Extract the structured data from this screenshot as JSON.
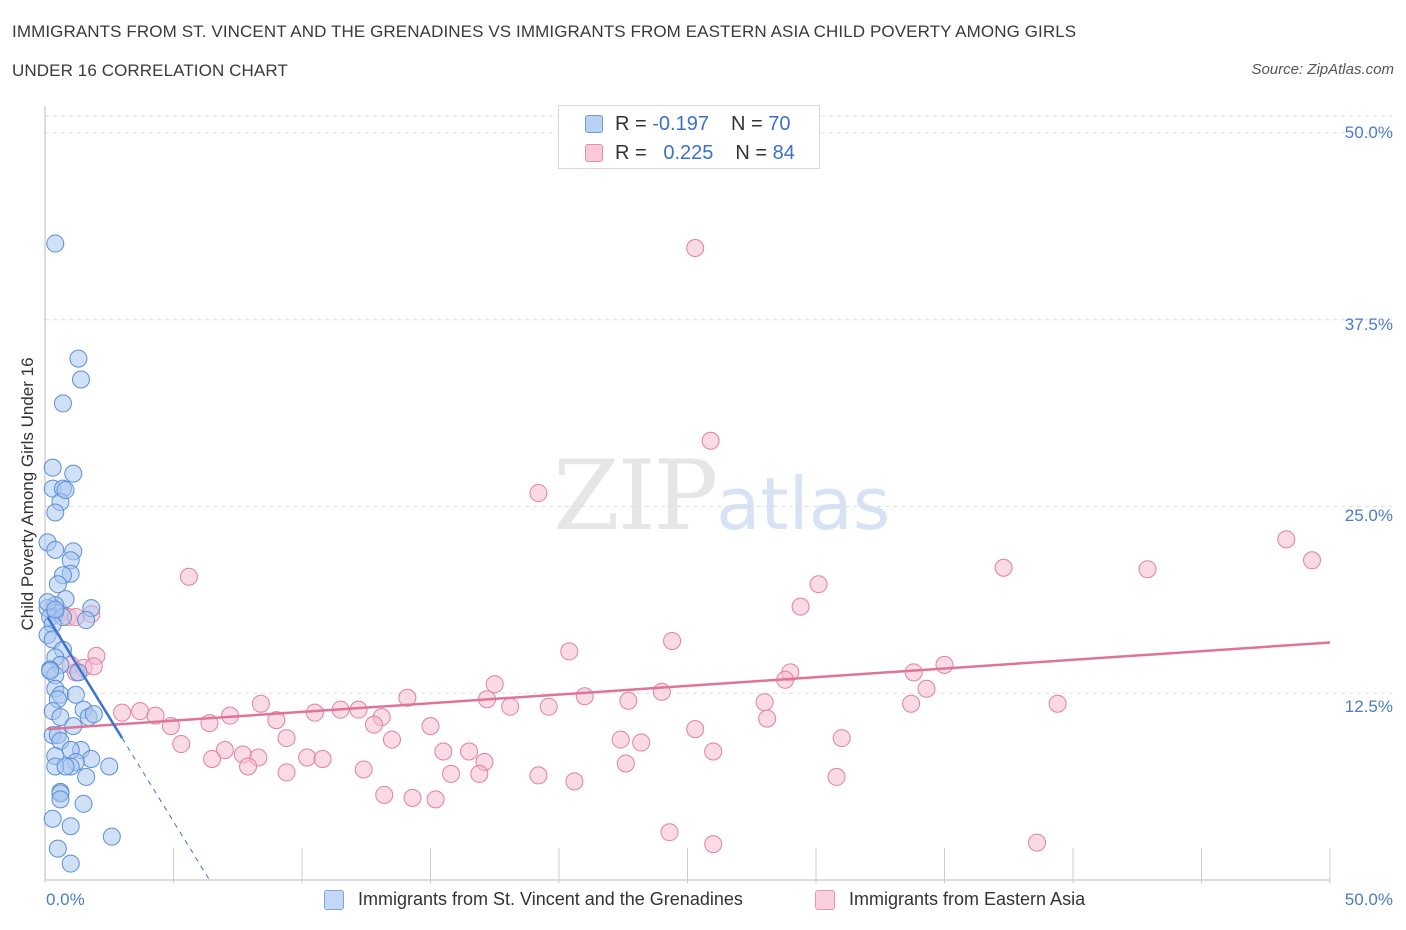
{
  "title_line1": "IMMIGRANTS FROM ST. VINCENT AND THE GRENADINES VS IMMIGRANTS FROM EASTERN ASIA CHILD POVERTY AMONG GIRLS",
  "title_line2": "UNDER 16 CORRELATION CHART",
  "source": "Source: ZipAtlas.com",
  "watermark": {
    "zip": "ZIP",
    "atlas": "atlas"
  },
  "stats": [
    {
      "r_label": "R =",
      "r_value": "-0.197",
      "n_label": "N =",
      "n_value": "70"
    },
    {
      "r_label": "R =",
      "r_value": "0.225",
      "n_label": "N =",
      "n_value": "84"
    }
  ],
  "colors": {
    "series1_fill": "#a9c7f0",
    "series1_stroke": "#5b8fd6",
    "series1_line": "#3d74d1",
    "series2_fill": "#f6bcd0",
    "series2_stroke": "#e2809f",
    "series2_line": "#e0739a",
    "tick_text": "#4a7cc9",
    "grid": "#dddddd"
  },
  "chart_data": {
    "type": "scatter",
    "title": "IMMIGRANTS FROM ST. VINCENT AND THE GRENADINES VS IMMIGRANTS FROM EASTERN ASIA CHILD POVERTY AMONG GIRLS UNDER 16 CORRELATION CHART",
    "xlabel": "",
    "ylabel": "Child Poverty Among Girls Under 16",
    "xlim": [
      0,
      50
    ],
    "ylim": [
      0,
      50
    ],
    "x_tick_labels": [
      {
        "value": 0,
        "label": "0.0%"
      },
      {
        "value": 50,
        "label": "50.0%"
      }
    ],
    "y_tick_labels": [
      {
        "value": 12.5,
        "label": "12.5%"
      },
      {
        "value": 25,
        "label": "25.0%"
      },
      {
        "value": 37.5,
        "label": "37.5%"
      },
      {
        "value": 50,
        "label": "50.0%"
      }
    ],
    "grid": true,
    "legend_position": "bottom",
    "series": [
      {
        "name": "Immigrants from St. Vincent and the Grenadines",
        "R": -0.197,
        "N": 70,
        "trend_solid": [
          [
            0.1,
            17.6
          ],
          [
            3.0,
            9.5
          ]
        ],
        "trend_dashed": [
          [
            3.0,
            9.5
          ],
          [
            6.4,
            0.0
          ]
        ],
        "points": [
          [
            0.4,
            42.6
          ],
          [
            1.3,
            34.9
          ],
          [
            1.4,
            33.5
          ],
          [
            0.7,
            31.9
          ],
          [
            0.3,
            27.6
          ],
          [
            1.1,
            27.2
          ],
          [
            0.3,
            26.2
          ],
          [
            0.7,
            26.2
          ],
          [
            0.6,
            25.3
          ],
          [
            0.4,
            24.6
          ],
          [
            0.1,
            22.6
          ],
          [
            0.4,
            22.1
          ],
          [
            1.1,
            22.0
          ],
          [
            1.0,
            21.4
          ],
          [
            1.0,
            20.5
          ],
          [
            0.7,
            20.4
          ],
          [
            0.5,
            19.8
          ],
          [
            0.8,
            18.8
          ],
          [
            0.4,
            18.4
          ],
          [
            0.1,
            18.2
          ],
          [
            1.8,
            18.2
          ],
          [
            0.4,
            17.9
          ],
          [
            0.2,
            17.6
          ],
          [
            0.7,
            17.6
          ],
          [
            1.6,
            17.4
          ],
          [
            0.3,
            17.1
          ],
          [
            0.1,
            16.4
          ],
          [
            0.3,
            16.1
          ],
          [
            0.7,
            15.4
          ],
          [
            0.4,
            14.9
          ],
          [
            0.6,
            14.4
          ],
          [
            0.2,
            14.1
          ],
          [
            1.3,
            13.9
          ],
          [
            0.4,
            13.7
          ],
          [
            0.4,
            12.8
          ],
          [
            0.6,
            12.4
          ],
          [
            1.2,
            12.4
          ],
          [
            0.5,
            12.1
          ],
          [
            1.5,
            11.4
          ],
          [
            0.3,
            11.3
          ],
          [
            0.6,
            10.9
          ],
          [
            1.7,
            10.9
          ],
          [
            1.1,
            10.3
          ],
          [
            0.3,
            9.7
          ],
          [
            0.5,
            9.7
          ],
          [
            0.6,
            9.3
          ],
          [
            1.4,
            8.7
          ],
          [
            1.0,
            8.7
          ],
          [
            0.4,
            8.3
          ],
          [
            1.8,
            8.1
          ],
          [
            1.2,
            7.9
          ],
          [
            1.0,
            7.6
          ],
          [
            0.4,
            7.6
          ],
          [
            0.8,
            7.6
          ],
          [
            2.5,
            7.6
          ],
          [
            1.6,
            6.9
          ],
          [
            0.6,
            5.9
          ],
          [
            0.6,
            5.8
          ],
          [
            0.6,
            5.4
          ],
          [
            1.5,
            5.1
          ],
          [
            0.3,
            4.1
          ],
          [
            1.0,
            3.6
          ],
          [
            2.6,
            2.9
          ],
          [
            0.5,
            2.1
          ],
          [
            1.0,
            1.1
          ],
          [
            0.1,
            18.6
          ],
          [
            0.2,
            14.0
          ],
          [
            1.9,
            11.1
          ],
          [
            0.4,
            18.1
          ],
          [
            0.8,
            26.1
          ]
        ]
      },
      {
        "name": "Immigrants from Eastern Asia",
        "R": 0.225,
        "N": 84,
        "trend": [
          [
            0.1,
            10.1
          ],
          [
            50.0,
            15.9
          ]
        ],
        "points": [
          [
            25.3,
            42.3
          ],
          [
            25.9,
            29.4
          ],
          [
            19.2,
            25.9
          ],
          [
            5.6,
            20.3
          ],
          [
            48.3,
            22.8
          ],
          [
            49.3,
            21.4
          ],
          [
            37.3,
            20.9
          ],
          [
            42.9,
            20.8
          ],
          [
            30.1,
            19.8
          ],
          [
            29.4,
            18.3
          ],
          [
            0.6,
            17.9
          ],
          [
            0.9,
            17.6
          ],
          [
            1.2,
            17.6
          ],
          [
            24.4,
            16.0
          ],
          [
            20.4,
            15.3
          ],
          [
            2.0,
            15.0
          ],
          [
            1.0,
            14.4
          ],
          [
            1.5,
            14.2
          ],
          [
            1.9,
            14.3
          ],
          [
            1.2,
            13.9
          ],
          [
            35.0,
            14.4
          ],
          [
            29.0,
            13.9
          ],
          [
            33.8,
            13.9
          ],
          [
            28.8,
            13.4
          ],
          [
            17.5,
            13.1
          ],
          [
            34.3,
            12.8
          ],
          [
            24.0,
            12.6
          ],
          [
            21.0,
            12.3
          ],
          [
            22.7,
            12.0
          ],
          [
            14.1,
            12.2
          ],
          [
            17.2,
            12.1
          ],
          [
            28.0,
            11.9
          ],
          [
            33.7,
            11.8
          ],
          [
            39.4,
            11.8
          ],
          [
            8.4,
            11.8
          ],
          [
            18.1,
            11.6
          ],
          [
            19.6,
            11.6
          ],
          [
            11.5,
            11.4
          ],
          [
            12.2,
            11.4
          ],
          [
            10.5,
            11.2
          ],
          [
            3.0,
            11.2
          ],
          [
            3.7,
            11.3
          ],
          [
            4.3,
            11.0
          ],
          [
            7.2,
            11.0
          ],
          [
            13.1,
            10.9
          ],
          [
            28.1,
            10.8
          ],
          [
            9.0,
            10.7
          ],
          [
            6.4,
            10.5
          ],
          [
            4.9,
            10.3
          ],
          [
            12.8,
            10.4
          ],
          [
            15.0,
            10.3
          ],
          [
            25.3,
            10.1
          ],
          [
            9.4,
            9.5
          ],
          [
            31.0,
            9.5
          ],
          [
            13.5,
            9.4
          ],
          [
            22.4,
            9.4
          ],
          [
            23.2,
            9.2
          ],
          [
            5.3,
            9.1
          ],
          [
            7.0,
            8.7
          ],
          [
            15.5,
            8.6
          ],
          [
            16.5,
            8.6
          ],
          [
            7.7,
            8.4
          ],
          [
            26.0,
            8.6
          ],
          [
            6.5,
            8.1
          ],
          [
            8.3,
            8.2
          ],
          [
            10.2,
            8.2
          ],
          [
            10.8,
            8.1
          ],
          [
            17.1,
            7.9
          ],
          [
            22.6,
            7.8
          ],
          [
            7.9,
            7.6
          ],
          [
            12.4,
            7.4
          ],
          [
            9.4,
            7.2
          ],
          [
            15.8,
            7.1
          ],
          [
            16.9,
            7.1
          ],
          [
            19.2,
            7.0
          ],
          [
            30.8,
            6.9
          ],
          [
            20.6,
            6.6
          ],
          [
            13.2,
            5.7
          ],
          [
            14.3,
            5.5
          ],
          [
            15.2,
            5.4
          ],
          [
            24.3,
            3.2
          ],
          [
            26.0,
            2.4
          ],
          [
            38.6,
            2.5
          ],
          [
            1.8,
            17.8
          ]
        ]
      }
    ]
  },
  "legend": [
    {
      "label": "Immigrants from St. Vincent and the Grenadines"
    },
    {
      "label": "Immigrants from Eastern Asia"
    }
  ]
}
